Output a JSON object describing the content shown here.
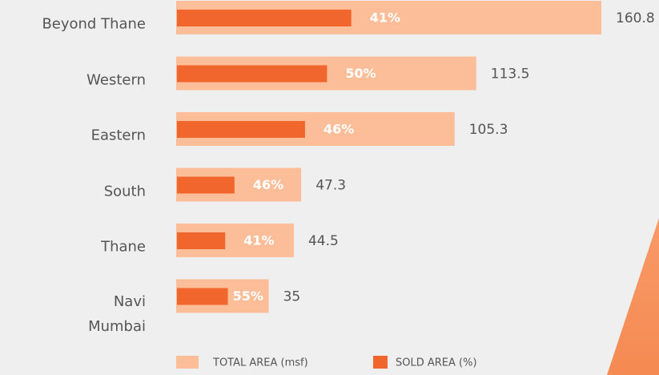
{
  "chart_data": {
    "type": "bar",
    "orientation": "horizontal",
    "categories": [
      "Beyond Thane",
      "Western",
      "Eastern",
      "South",
      "Thane",
      "Navi Mumbai"
    ],
    "series": [
      {
        "name": "TOTAL AREA (msf)",
        "color": "#fbbe98",
        "values": [
          160.8,
          113.5,
          105.3,
          47.3,
          44.5,
          35
        ]
      },
      {
        "name": "SOLD AREA (%)",
        "color": "#f1662c",
        "values": [
          41,
          50,
          46,
          46,
          41,
          55
        ],
        "value_labels": [
          "41%",
          "50%",
          "46%",
          "46%",
          "41%",
          "55%"
        ]
      }
    ]
  }
}
